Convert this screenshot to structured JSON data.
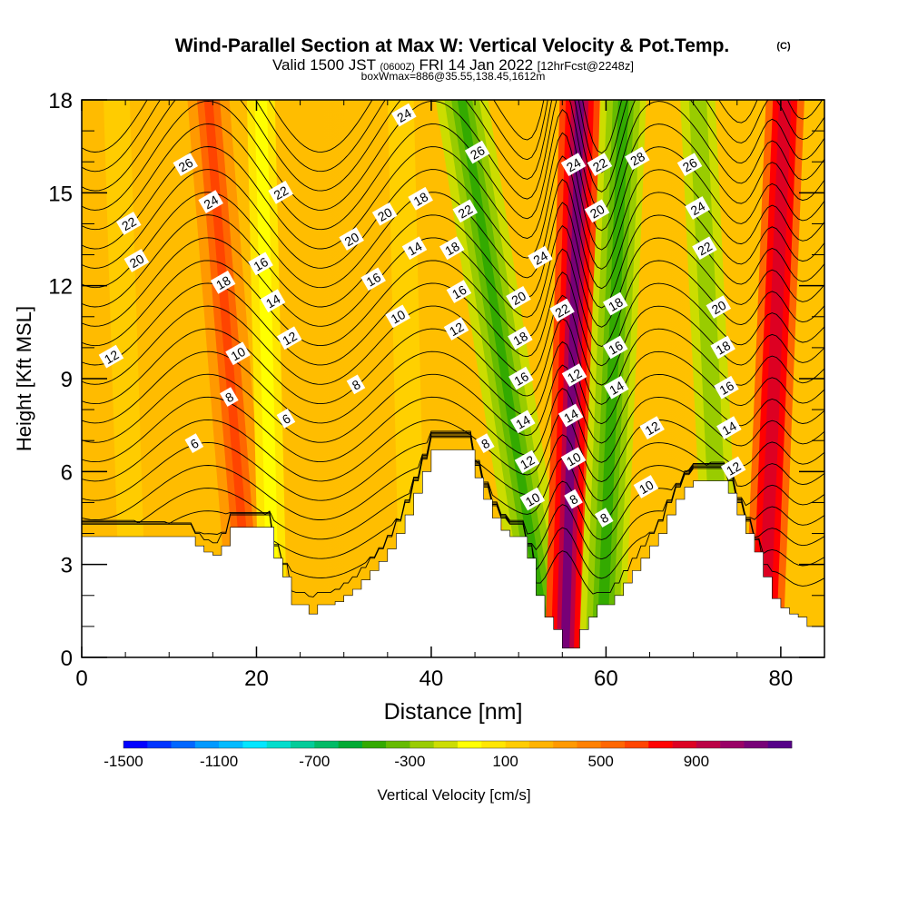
{
  "title": {
    "main": "Wind-Parallel Section at Max W: Vertical Velocity & Pot.Temp.",
    "mark": "(C)",
    "valid_prefix": "Valid 1500 JST",
    "valid_z": "(0600Z)",
    "valid_date": "FRI 14 Jan 2022",
    "valid_fcst": "[12hrFcst@2248z]",
    "box_line": "boxWmax=886@35.55,138.45,1612m"
  },
  "chart_data": {
    "type": "heatmap",
    "xlabel": "Distance [nm]",
    "ylabel": "Height [Kft MSL]",
    "xlim": [
      0,
      85
    ],
    "ylim": [
      0,
      18
    ],
    "x_ticks": [
      0,
      20,
      40,
      60,
      80
    ],
    "y_ticks": [
      0,
      3,
      6,
      9,
      12,
      15,
      18
    ],
    "x_tick_labels": [
      "0",
      "20",
      "40",
      "60",
      "80"
    ],
    "y_tick_labels": [
      "0",
      "3",
      "6",
      "9",
      "12",
      "15",
      "18"
    ],
    "colorbar": {
      "label": "Vertical Velocity [cm/s]",
      "tick_labels": [
        "-1500",
        "-1100",
        "-700",
        "-300",
        "100",
        "500",
        "900"
      ],
      "tick_values": [
        -1500,
        -1100,
        -700,
        -300,
        100,
        500,
        900
      ],
      "colors": [
        "#0000ff",
        "#0033ff",
        "#0066ff",
        "#0099ff",
        "#00bbff",
        "#00e6ff",
        "#00ddcc",
        "#00cc99",
        "#00bb66",
        "#00aa33",
        "#33aa00",
        "#66bb00",
        "#99cc00",
        "#ccdd00",
        "#ffff00",
        "#ffe600",
        "#ffcc00",
        "#ffb300",
        "#ff9900",
        "#ff8000",
        "#ff6600",
        "#ff4400",
        "#ff0000",
        "#dd0022",
        "#bb0044",
        "#990066",
        "#770077",
        "#550088"
      ]
    },
    "terrain": [
      [
        0,
        3.9
      ],
      [
        13,
        3.9
      ],
      [
        13,
        3.6
      ],
      [
        14,
        3.6
      ],
      [
        14,
        3.4
      ],
      [
        15,
        3.4
      ],
      [
        15,
        3.3
      ],
      [
        16,
        3.3
      ],
      [
        16,
        3.6
      ],
      [
        17,
        3.6
      ],
      [
        17,
        4.2
      ],
      [
        22,
        4.2
      ],
      [
        22,
        3.2
      ],
      [
        23,
        3.2
      ],
      [
        23,
        2.6
      ],
      [
        24,
        2.6
      ],
      [
        24,
        1.7
      ],
      [
        26,
        1.7
      ],
      [
        26,
        1.4
      ],
      [
        27,
        1.4
      ],
      [
        27,
        1.7
      ],
      [
        29,
        1.7
      ],
      [
        29,
        1.8
      ],
      [
        30,
        1.8
      ],
      [
        30,
        2.0
      ],
      [
        31,
        2.0
      ],
      [
        31,
        2.2
      ],
      [
        32,
        2.2
      ],
      [
        32,
        2.5
      ],
      [
        33,
        2.5
      ],
      [
        33,
        2.8
      ],
      [
        34,
        2.8
      ],
      [
        34,
        3.1
      ],
      [
        35,
        3.1
      ],
      [
        35,
        3.5
      ],
      [
        36,
        3.5
      ],
      [
        36,
        4.0
      ],
      [
        37,
        4.0
      ],
      [
        37,
        4.6
      ],
      [
        38,
        4.6
      ],
      [
        38,
        5.3
      ],
      [
        39,
        5.3
      ],
      [
        39,
        6.0
      ],
      [
        40,
        6.0
      ],
      [
        40,
        6.7
      ],
      [
        45,
        6.7
      ],
      [
        45,
        5.8
      ],
      [
        46,
        5.8
      ],
      [
        46,
        5.1
      ],
      [
        47,
        5.1
      ],
      [
        47,
        4.5
      ],
      [
        48,
        4.5
      ],
      [
        48,
        4.1
      ],
      [
        49,
        4.1
      ],
      [
        49,
        3.9
      ],
      [
        51,
        3.9
      ],
      [
        51,
        3.2
      ],
      [
        52,
        3.2
      ],
      [
        52,
        2.0
      ],
      [
        53,
        2.0
      ],
      [
        53,
        1.3
      ],
      [
        54,
        1.3
      ],
      [
        54,
        0.9
      ],
      [
        55,
        0.9
      ],
      [
        55,
        0.3
      ],
      [
        57,
        0.3
      ],
      [
        57,
        0.9
      ],
      [
        58,
        0.9
      ],
      [
        58,
        1.3
      ],
      [
        59,
        1.3
      ],
      [
        59,
        1.7
      ],
      [
        61,
        1.7
      ],
      [
        61,
        2.0
      ],
      [
        62,
        2.0
      ],
      [
        62,
        2.4
      ],
      [
        63,
        2.4
      ],
      [
        63,
        2.8
      ],
      [
        64,
        2.8
      ],
      [
        64,
        3.2
      ],
      [
        65,
        3.2
      ],
      [
        65,
        3.6
      ],
      [
        66,
        3.6
      ],
      [
        66,
        4.0
      ],
      [
        67,
        4.0
      ],
      [
        67,
        4.6
      ],
      [
        68,
        4.6
      ],
      [
        68,
        5.1
      ],
      [
        69,
        5.1
      ],
      [
        69,
        5.5
      ],
      [
        70,
        5.5
      ],
      [
        70,
        5.7
      ],
      [
        74,
        5.7
      ],
      [
        74,
        5.3
      ],
      [
        75,
        5.3
      ],
      [
        75,
        4.6
      ],
      [
        76,
        4.6
      ],
      [
        76,
        4.0
      ],
      [
        77,
        4.0
      ],
      [
        77,
        3.4
      ],
      [
        78,
        3.4
      ],
      [
        78,
        2.6
      ],
      [
        79,
        2.6
      ],
      [
        79,
        1.9
      ],
      [
        80,
        1.9
      ],
      [
        80,
        1.6
      ],
      [
        81,
        1.6
      ],
      [
        81,
        1.4
      ],
      [
        82,
        1.4
      ],
      [
        82,
        1.3
      ],
      [
        83,
        1.3
      ],
      [
        83,
        1.0
      ],
      [
        85,
        1.0
      ]
    ],
    "isentrope_labels": [
      {
        "text": "6",
        "x": 12.9,
        "y": 6.9
      },
      {
        "text": "8",
        "x": 16.9,
        "y": 8.4
      },
      {
        "text": "10",
        "x": 17.9,
        "y": 9.8
      },
      {
        "text": "12",
        "x": 3.4,
        "y": 9.7
      },
      {
        "text": "18",
        "x": 16.2,
        "y": 12.1
      },
      {
        "text": "20",
        "x": 6.3,
        "y": 12.8
      },
      {
        "text": "22",
        "x": 5.4,
        "y": 14.0
      },
      {
        "text": "24",
        "x": 14.8,
        "y": 14.7
      },
      {
        "text": "26",
        "x": 11.9,
        "y": 15.9
      },
      {
        "text": "16",
        "x": 20.5,
        "y": 12.7
      },
      {
        "text": "14",
        "x": 21.9,
        "y": 11.5
      },
      {
        "text": "12",
        "x": 23.8,
        "y": 10.3
      },
      {
        "text": "6",
        "x": 23.4,
        "y": 7.7
      },
      {
        "text": "22",
        "x": 22.8,
        "y": 15.0
      },
      {
        "text": "20",
        "x": 30.9,
        "y": 13.5
      },
      {
        "text": "8",
        "x": 31.4,
        "y": 8.8
      },
      {
        "text": "16",
        "x": 33.4,
        "y": 12.2
      },
      {
        "text": "20",
        "x": 34.7,
        "y": 14.3
      },
      {
        "text": "10",
        "x": 36.2,
        "y": 11.0
      },
      {
        "text": "14",
        "x": 38.1,
        "y": 13.2
      },
      {
        "text": "18",
        "x": 38.8,
        "y": 14.8
      },
      {
        "text": "24",
        "x": 36.9,
        "y": 17.5
      },
      {
        "text": "26",
        "x": 45.3,
        "y": 16.3
      },
      {
        "text": "22",
        "x": 43.9,
        "y": 14.4
      },
      {
        "text": "18",
        "x": 42.4,
        "y": 13.2
      },
      {
        "text": "16",
        "x": 43.2,
        "y": 11.8
      },
      {
        "text": "12",
        "x": 42.9,
        "y": 10.6
      },
      {
        "text": "8",
        "x": 46.2,
        "y": 6.9
      },
      {
        "text": "24",
        "x": 52.5,
        "y": 12.9
      },
      {
        "text": "20",
        "x": 50.0,
        "y": 11.6
      },
      {
        "text": "18",
        "x": 50.2,
        "y": 10.3
      },
      {
        "text": "16",
        "x": 50.3,
        "y": 9.0
      },
      {
        "text": "14",
        "x": 50.5,
        "y": 7.6
      },
      {
        "text": "12",
        "x": 51.0,
        "y": 6.3
      },
      {
        "text": "10",
        "x": 51.6,
        "y": 5.1
      },
      {
        "text": "24",
        "x": 56.3,
        "y": 15.9
      },
      {
        "text": "22",
        "x": 55.0,
        "y": 11.2
      },
      {
        "text": "12",
        "x": 56.4,
        "y": 9.1
      },
      {
        "text": "14",
        "x": 56.0,
        "y": 7.8
      },
      {
        "text": "10",
        "x": 56.3,
        "y": 6.4
      },
      {
        "text": "8",
        "x": 56.3,
        "y": 5.1
      },
      {
        "text": "22",
        "x": 59.3,
        "y": 15.9
      },
      {
        "text": "20",
        "x": 59.0,
        "y": 14.4
      },
      {
        "text": "18",
        "x": 61.1,
        "y": 11.4
      },
      {
        "text": "16",
        "x": 61.1,
        "y": 10.0
      },
      {
        "text": "14",
        "x": 61.2,
        "y": 8.7
      },
      {
        "text": "8",
        "x": 59.8,
        "y": 4.5
      },
      {
        "text": "28",
        "x": 63.6,
        "y": 16.1
      },
      {
        "text": "26",
        "x": 69.6,
        "y": 15.9
      },
      {
        "text": "24",
        "x": 70.5,
        "y": 14.5
      },
      {
        "text": "22",
        "x": 71.3,
        "y": 13.2
      },
      {
        "text": "20",
        "x": 72.9,
        "y": 11.3
      },
      {
        "text": "18",
        "x": 73.4,
        "y": 10.0
      },
      {
        "text": "16",
        "x": 73.8,
        "y": 8.7
      },
      {
        "text": "14",
        "x": 74.1,
        "y": 7.4
      },
      {
        "text": "12",
        "x": 74.6,
        "y": 6.1
      },
      {
        "text": "12",
        "x": 65.3,
        "y": 7.4
      },
      {
        "text": "10",
        "x": 64.6,
        "y": 5.5
      }
    ]
  }
}
